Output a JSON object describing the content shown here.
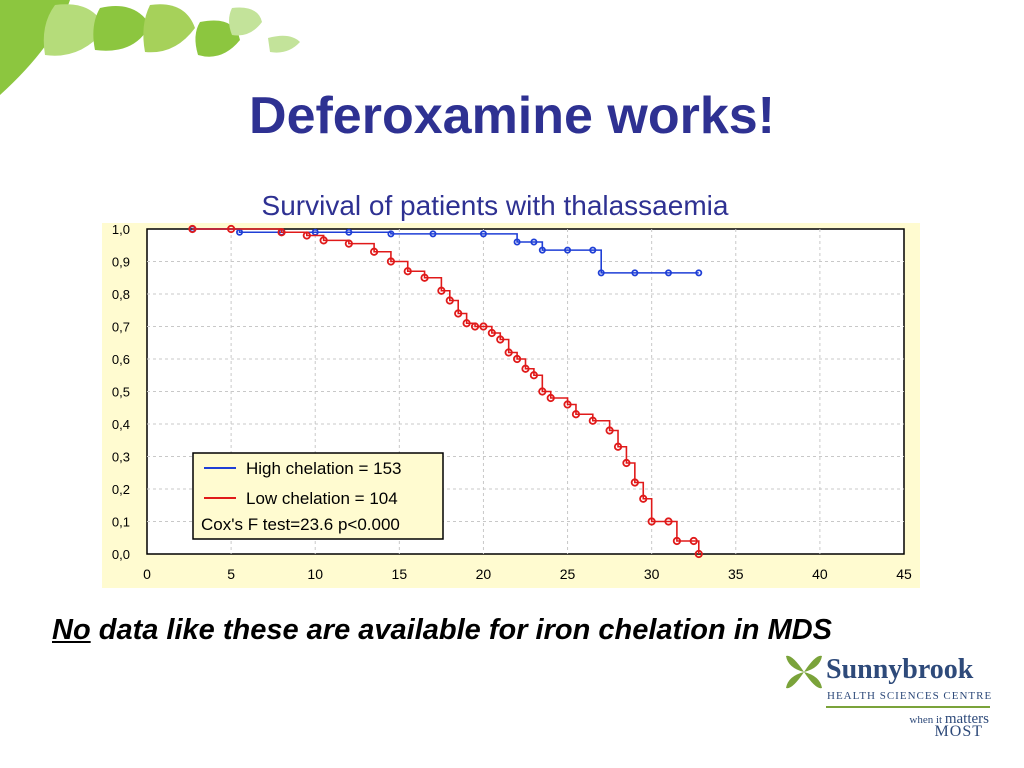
{
  "slide": {
    "title": "Deferoxamine works!",
    "subtitle": "Survival of patients with thalassaemia",
    "note_emphasis": "No",
    "note_rest": " data like these are available for iron chelation in MDS"
  },
  "logo": {
    "name": "Sunnybrook",
    "subtitle": "HEALTH SCIENCES CENTRE",
    "tagline_small": "when it ",
    "tagline_big": "matters",
    "tagline_last": "MOST"
  },
  "colors": {
    "title": "#2e3192",
    "chart_background": "#fffbd0",
    "high_series": "#1f3fd6",
    "low_series": "#e01a1a",
    "leaf_green": "#8cc63f"
  },
  "chart_data": {
    "type": "line",
    "title": "",
    "xlabel": "",
    "ylabel": "",
    "xlim": [
      0,
      45
    ],
    "ylim": [
      0,
      1
    ],
    "x_ticks": [
      "0",
      "5",
      "10",
      "15",
      "20",
      "25",
      "30",
      "35",
      "40",
      "45"
    ],
    "y_ticks": [
      "0,0",
      "0,1",
      "0,2",
      "0,3",
      "0,4",
      "0,5",
      "0,6",
      "0,7",
      "0,8",
      "0,9",
      "1,0"
    ],
    "grid": true,
    "legend_position": "bottom-left",
    "legend": [
      "High chelation = 153",
      "Low chelation = 104"
    ],
    "annotation": "Cox's F test=23.6  p<0.000",
    "series": [
      {
        "name": "High chelation = 153",
        "color": "#1f3fd6",
        "points": [
          [
            2.7,
            1.0
          ],
          [
            5.5,
            0.99
          ],
          [
            8,
            0.99
          ],
          [
            10,
            0.99
          ],
          [
            12,
            0.99
          ],
          [
            14.5,
            0.985
          ],
          [
            17,
            0.985
          ],
          [
            20,
            0.985
          ],
          [
            22,
            0.96
          ],
          [
            23,
            0.96
          ],
          [
            23.5,
            0.935
          ],
          [
            25,
            0.935
          ],
          [
            26.5,
            0.935
          ],
          [
            27,
            0.865
          ],
          [
            29,
            0.865
          ],
          [
            31,
            0.865
          ],
          [
            32.8,
            0.865
          ]
        ]
      },
      {
        "name": "Low chelation = 104",
        "color": "#e01a1a",
        "points": [
          [
            2.7,
            1.0
          ],
          [
            5,
            1.0
          ],
          [
            8,
            0.99
          ],
          [
            9.5,
            0.98
          ],
          [
            10.5,
            0.965
          ],
          [
            12,
            0.955
          ],
          [
            13.5,
            0.93
          ],
          [
            14.5,
            0.9
          ],
          [
            15.5,
            0.87
          ],
          [
            16.5,
            0.85
          ],
          [
            17.5,
            0.81
          ],
          [
            18,
            0.78
          ],
          [
            18.5,
            0.74
          ],
          [
            19,
            0.71
          ],
          [
            19.5,
            0.7
          ],
          [
            20,
            0.7
          ],
          [
            20.5,
            0.68
          ],
          [
            21,
            0.66
          ],
          [
            21.5,
            0.62
          ],
          [
            22,
            0.6
          ],
          [
            22.5,
            0.57
          ],
          [
            23,
            0.55
          ],
          [
            23.5,
            0.5
          ],
          [
            24,
            0.48
          ],
          [
            25,
            0.46
          ],
          [
            25.5,
            0.43
          ],
          [
            26.5,
            0.41
          ],
          [
            27.5,
            0.38
          ],
          [
            28,
            0.33
          ],
          [
            28.5,
            0.28
          ],
          [
            29,
            0.22
          ],
          [
            29.5,
            0.17
          ],
          [
            30,
            0.1
          ],
          [
            31,
            0.1
          ],
          [
            31.5,
            0.04
          ],
          [
            32.5,
            0.04
          ],
          [
            32.8,
            0.0
          ]
        ]
      }
    ]
  }
}
